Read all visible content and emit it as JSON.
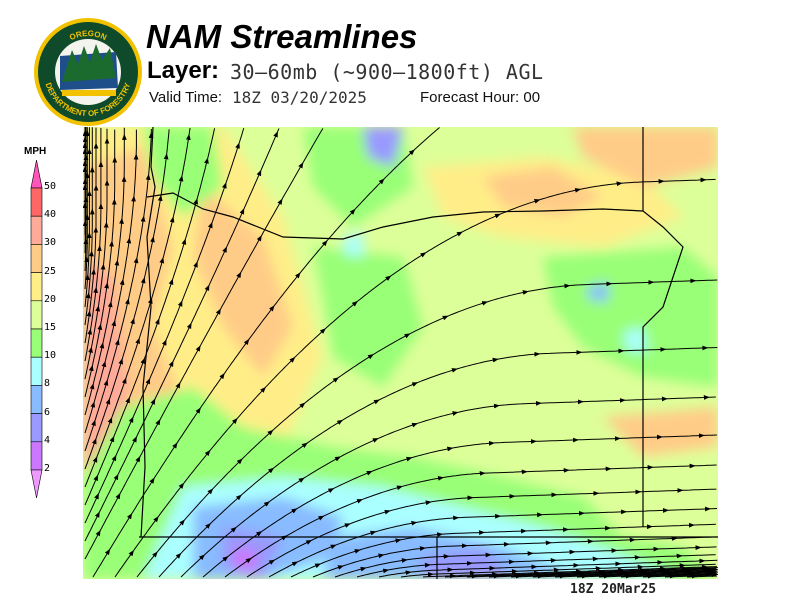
{
  "header": {
    "title": "NAM Streamlines",
    "layer_label": "Layer:",
    "layer_value": "30–60mb (~900–1800ft) AGL",
    "valid_time_label": "Valid Time:",
    "valid_time_value": "18Z 03/20/2025",
    "forecast_hour": "Forecast Hour: 00"
  },
  "logo": {
    "top_text": "OREGON",
    "ring_text": "DEPARTMENT OF FORESTRY"
  },
  "legend": {
    "unit": "MPH",
    "ticks": [
      "50",
      "40",
      "30",
      "25",
      "20",
      "15",
      "10",
      "8",
      "6",
      "4",
      "2"
    ],
    "colors": [
      "#ff6666",
      "#ffaa99",
      "#ffcc88",
      "#ffee88",
      "#ddff99",
      "#99ff77",
      "#aaffff",
      "#88bbff",
      "#9999ff",
      "#cc77ff"
    ],
    "over_color": "#ff55bb",
    "under_color": "#ee99ff"
  },
  "footer": {
    "timestamp": "18Z 20Mar25"
  }
}
